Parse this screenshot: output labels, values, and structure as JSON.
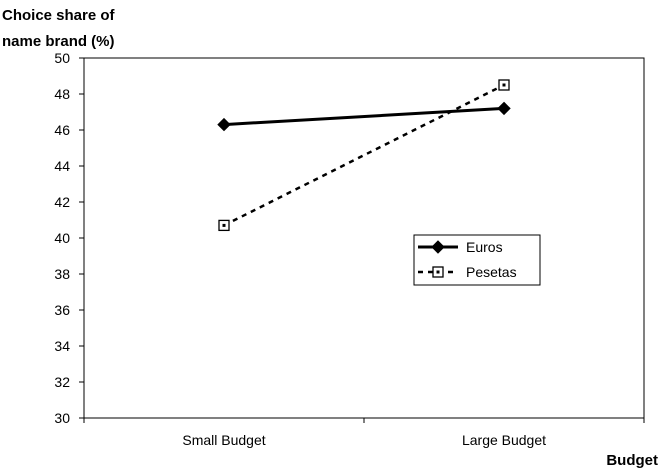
{
  "chart_data": {
    "type": "line",
    "title": "",
    "ylabel": "Choice share of name brand (%)",
    "ylabel_lines": [
      "Choice share of",
      "name brand (%)"
    ],
    "xlabel": "Budget",
    "categories": [
      "Small Budget",
      "Large Budget"
    ],
    "ylim": [
      30,
      50
    ],
    "yticks": [
      "30",
      "32",
      "34",
      "36",
      "38",
      "40",
      "42",
      "44",
      "46",
      "48",
      "50"
    ],
    "grid": false,
    "legend_position": "center-right",
    "series": [
      {
        "name": "Euros",
        "values": [
          46.3,
          47.2
        ],
        "line": "solid",
        "marker": "filled-diamond",
        "color": "#000000"
      },
      {
        "name": "Pesetas",
        "values": [
          40.7,
          48.5
        ],
        "line": "dashed",
        "marker": "open-square",
        "color": "#000000"
      }
    ]
  }
}
